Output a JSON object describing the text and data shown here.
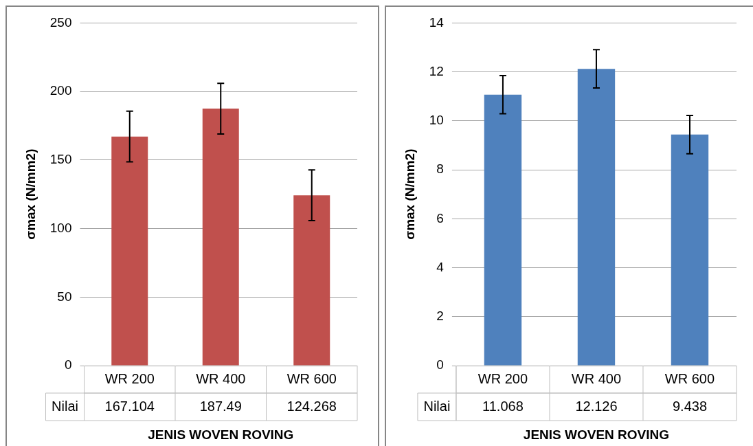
{
  "chart_data": [
    {
      "type": "bar",
      "categories": [
        "WR 200",
        "WR 400",
        "WR 600"
      ],
      "values": [
        167.104,
        187.49,
        124.268
      ],
      "errors": [
        18.5,
        18.5,
        18.5
      ],
      "color": "#c0504d",
      "ylabel": "σmax (N/mm2)",
      "xlabel": "JENIS WOVEN ROVING",
      "ylim": [
        0,
        250
      ],
      "yticks": [
        0,
        50,
        100,
        150,
        200,
        250
      ],
      "grid": "y",
      "legend": false,
      "data_labels": true,
      "annotations": [
        "Nilai"
      ]
    },
    {
      "type": "bar",
      "categories": [
        "WR 200",
        "WR 400",
        "WR 600"
      ],
      "values": [
        11.068,
        12.126,
        9.438
      ],
      "errors": [
        0.78,
        0.78,
        0.78
      ],
      "color": "#4f81bd",
      "ylabel": "σmax (N/mm2)",
      "xlabel": "JENIS WOVEN ROVING",
      "ylim": [
        0,
        14
      ],
      "yticks": [
        0,
        2,
        4,
        6,
        8,
        10,
        12,
        14
      ],
      "grid": "y",
      "legend": false,
      "data_labels": true,
      "annotations": [
        "Nilai"
      ]
    }
  ]
}
